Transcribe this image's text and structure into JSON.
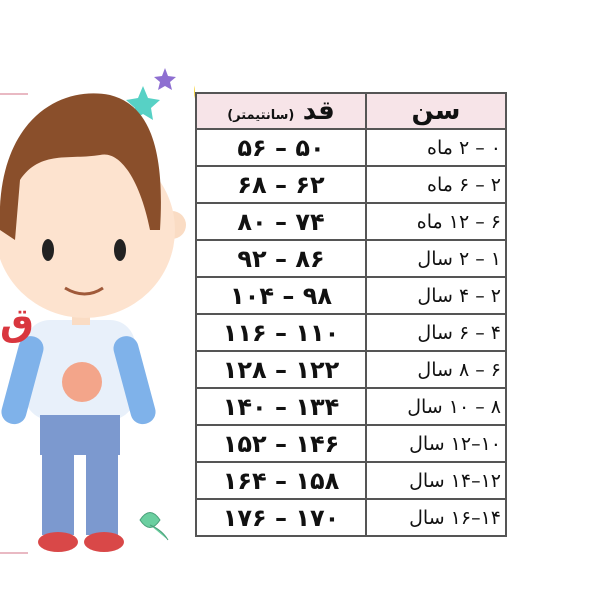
{
  "side_text": "ق",
  "table": {
    "header": {
      "height_title": "قد",
      "height_unit": "(سانتیمتر)",
      "age_title": "سن"
    },
    "rows": [
      [
        "۵۰ – ۵۶",
        "۰ – ۲ ماه"
      ],
      [
        "۶۲ – ۶۸",
        "۲ – ۶ ماه"
      ],
      [
        "۷۴ – ۸۰",
        "۶ – ۱۲ ماه"
      ],
      [
        "۸۶ – ۹۲",
        "۱ – ۲ سال"
      ],
      [
        "۹۸ – ۱۰۴",
        "۲ – ۴ سال"
      ],
      [
        "۱۱۰ – ۱۱۶",
        "۴ – ۶ سال"
      ],
      [
        "۱۲۲ – ۱۲۸",
        "۶ – ۸ سال"
      ],
      [
        "۱۳۴ – ۱۴۰",
        "۸ – ۱۰ سال"
      ],
      [
        "۱۴۶ – ۱۵۲",
        "۱۰–۱۲ سال"
      ],
      [
        "۱۵۸ – ۱۶۴",
        "۱۲–۱۴ سال"
      ],
      [
        "۱۷۰ – ۱۷۶",
        "۱۴–۱۶ سال"
      ]
    ]
  }
}
